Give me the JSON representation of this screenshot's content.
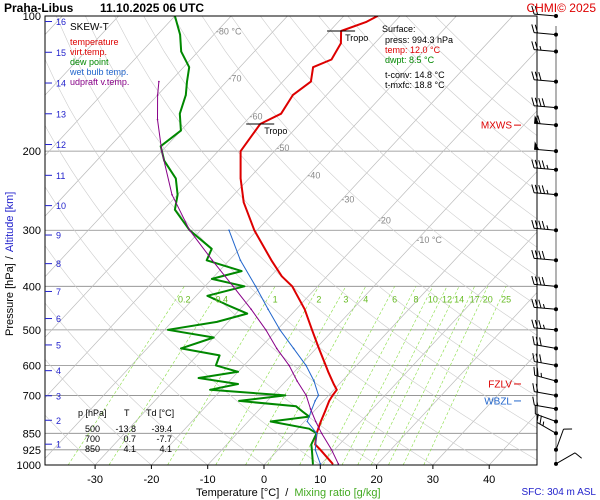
{
  "header": {
    "station": "Praha-Libus",
    "datetime": "11.10.2025 06 UTC",
    "copyright": "CHMI© 2025"
  },
  "legend": {
    "title": "SKEW-T",
    "items": [
      {
        "label": "temperature",
        "color": "#dd0000"
      },
      {
        "label": "virt.temp.",
        "color": "#dd0000"
      },
      {
        "label": "dew point",
        "color": "#008800"
      },
      {
        "label": "wet bulb temp.",
        "color": "#2266cc"
      },
      {
        "label": "udpraft v.temp.",
        "color": "#880088"
      }
    ]
  },
  "surface_box": {
    "title": "Surface:",
    "press": "press: 994.3 hPa",
    "temp": "temp: 12.0 °C",
    "dwpt": "dwpt: 8.5 °C",
    "tconv": "t-conv: 14.8 °C",
    "tmxfc": "t-mxfc: 18.8 °C"
  },
  "level_table": {
    "headers": [
      "p [hPa]",
      "T",
      "Td [°C]"
    ],
    "rows": [
      [
        "500",
        "-13.8",
        "-39.4"
      ],
      [
        "700",
        "0.7",
        "-7.7"
      ],
      [
        "850",
        "4.1",
        "4.1"
      ]
    ]
  },
  "axes": {
    "ylabel_pressure": "Pressure [hPa]",
    "ylabel_sep": "/",
    "ylabel_altitude": "Altitude [km]",
    "xlabel_temp": "Temperature [°C]",
    "xlabel_sep": "/",
    "xlabel_mix": "Mixing ratio [g/kg]",
    "sfc_label": "SFC: 304 m ASL"
  },
  "colors": {
    "temperature": "#dd0000",
    "dewpoint": "#008800",
    "wetbulb": "#2266cc",
    "parcel": "#880088",
    "altitude_axis": "#2222cc",
    "mixing": "#88dd44",
    "grid": "#999999",
    "marker": "#dd0000"
  },
  "chart_data": {
    "type": "line",
    "subtype": "skew-T log-p diagram",
    "x_axis": {
      "label": "Temperature [°C]",
      "ticks": [
        -30,
        -20,
        -10,
        0,
        10,
        20,
        30,
        40
      ],
      "range": [
        -35,
        45
      ]
    },
    "y_axis": {
      "label": "Pressure [hPa]",
      "scale": "log",
      "range": [
        1000,
        100
      ],
      "ticks": [
        100,
        200,
        300,
        400,
        500,
        600,
        700,
        850,
        925,
        1000
      ]
    },
    "altitude_ticks": [
      1,
      2,
      3,
      4,
      5,
      6,
      7,
      8,
      9,
      10,
      11,
      12,
      13,
      14,
      15,
      16
    ],
    "isotherm_labels": [
      -80,
      -70,
      -60,
      -50,
      -40,
      -30,
      -20,
      -10
    ],
    "isotherm_label_text": [
      "-80 °C",
      "-70",
      "-60",
      "-50",
      "-40",
      "-30",
      "-20",
      "-10 °C"
    ],
    "mixing_ratio_labels": [
      "0.2",
      "0.4",
      "1",
      "2",
      "3",
      "4",
      "6",
      "8",
      "10",
      "12",
      "14",
      "17",
      "20",
      "25"
    ],
    "mixing_ratio_values": [
      0.2,
      0.4,
      1,
      2,
      3,
      4,
      6,
      8,
      10,
      12,
      14,
      17,
      20,
      25
    ],
    "markers": [
      {
        "label": "MXWS",
        "pressure": 175
      },
      {
        "label": "FZLV",
        "pressure": 660
      },
      {
        "label": "WBZL",
        "pressure": 720
      }
    ],
    "tropopause_labels": [
      {
        "label": "Tropo",
        "pressure": 108,
        "temperature": -58
      },
      {
        "label": "Tropo",
        "pressure": 174,
        "temperature": -57
      }
    ],
    "series": [
      {
        "name": "temperature",
        "points": [
          [
            994,
            12.0
          ],
          [
            925,
            7.5
          ],
          [
            900,
            5.7
          ],
          [
            850,
            4.1
          ],
          [
            800,
            2.9
          ],
          [
            760,
            2.0
          ],
          [
            720,
            1.0
          ],
          [
            700,
            0.7
          ],
          [
            680,
            0.5
          ],
          [
            660,
            -1.0
          ],
          [
            620,
            -4.0
          ],
          [
            600,
            -5.5
          ],
          [
            550,
            -9.5
          ],
          [
            500,
            -13.8
          ],
          [
            450,
            -18.5
          ],
          [
            400,
            -24.5
          ],
          [
            380,
            -28.0
          ],
          [
            350,
            -32.5
          ],
          [
            300,
            -40.5
          ],
          [
            260,
            -47.0
          ],
          [
            230,
            -51.5
          ],
          [
            200,
            -56.0
          ],
          [
            174,
            -57.0
          ],
          [
            165,
            -55.0
          ],
          [
            150,
            -56.0
          ],
          [
            140,
            -55.0
          ],
          [
            130,
            -57.0
          ],
          [
            125,
            -55.0
          ],
          [
            115,
            -56.0
          ],
          [
            108,
            -58.0
          ],
          [
            103,
            -55.0
          ],
          [
            100,
            -54.0
          ]
        ]
      },
      {
        "name": "dew point",
        "points": [
          [
            994,
            8.5
          ],
          [
            925,
            6.0
          ],
          [
            900,
            5.0
          ],
          [
            850,
            4.1
          ],
          [
            830,
            2.0
          ],
          [
            800,
            -6.0
          ],
          [
            780,
            0.0
          ],
          [
            760,
            -2.0
          ],
          [
            740,
            -4.0
          ],
          [
            720,
            -15.0
          ],
          [
            700,
            -7.7
          ],
          [
            680,
            -22.0
          ],
          [
            660,
            -18.0
          ],
          [
            640,
            -26.0
          ],
          [
            620,
            -20.0
          ],
          [
            600,
            -25.0
          ],
          [
            570,
            -26.0
          ],
          [
            550,
            -34.0
          ],
          [
            520,
            -30.0
          ],
          [
            500,
            -39.4
          ],
          [
            480,
            -32.0
          ],
          [
            460,
            -28.0
          ],
          [
            440,
            -33.0
          ],
          [
            420,
            -38.0
          ],
          [
            400,
            -33.0
          ],
          [
            385,
            -40.0
          ],
          [
            370,
            -36.0
          ],
          [
            350,
            -44.0
          ],
          [
            330,
            -45.0
          ],
          [
            300,
            -52.0
          ],
          [
            270,
            -58.0
          ],
          [
            250,
            -60.0
          ],
          [
            230,
            -63.0
          ],
          [
            210,
            -68.0
          ],
          [
            195,
            -71.0
          ],
          [
            180,
            -70.0
          ],
          [
            165,
            -73.0
          ],
          [
            150,
            -75.0
          ],
          [
            140,
            -77.0
          ],
          [
            130,
            -79.0
          ],
          [
            120,
            -83.0
          ],
          [
            110,
            -86.0
          ],
          [
            100,
            -90.0
          ]
        ]
      },
      {
        "name": "wet bulb temp.",
        "points": [
          [
            994,
            9.8
          ],
          [
            925,
            6.6
          ],
          [
            850,
            4.1
          ],
          [
            800,
            0.5
          ],
          [
            760,
            -0.5
          ],
          [
            720,
            -1.5
          ],
          [
            700,
            -1.8
          ],
          [
            650,
            -5.0
          ],
          [
            600,
            -9.0
          ],
          [
            550,
            -14.0
          ],
          [
            500,
            -19.5
          ],
          [
            450,
            -25.0
          ],
          [
            400,
            -31.0
          ],
          [
            350,
            -38.0
          ],
          [
            300,
            -45.0
          ]
        ]
      },
      {
        "name": "udpraft v.temp.",
        "points": [
          [
            994,
            13.0
          ],
          [
            925,
            9.5
          ],
          [
            850,
            5.0
          ],
          [
            800,
            2.0
          ],
          [
            750,
            -1.0
          ],
          [
            700,
            -4.0
          ],
          [
            650,
            -8.0
          ],
          [
            600,
            -12.0
          ],
          [
            550,
            -17.0
          ],
          [
            500,
            -22.0
          ],
          [
            450,
            -28.0
          ],
          [
            400,
            -35.0
          ],
          [
            350,
            -43.0
          ],
          [
            300,
            -52.0
          ],
          [
            250,
            -61.0
          ],
          [
            200,
            -70.0
          ],
          [
            170,
            -76.0
          ],
          [
            150,
            -80.0
          ],
          [
            140,
            -82.0
          ]
        ]
      }
    ],
    "wind_barbs": [
      {
        "pressure": 994,
        "dir_deg": 60,
        "speed_kt": 10
      },
      {
        "pressure": 925,
        "dir_deg": 20,
        "speed_kt": 10
      },
      {
        "pressure": 850,
        "dir_deg": 300,
        "speed_kt": 25
      },
      {
        "pressure": 800,
        "dir_deg": 290,
        "speed_kt": 10
      },
      {
        "pressure": 750,
        "dir_deg": 280,
        "speed_kt": 15
      },
      {
        "pressure": 700,
        "dir_deg": 280,
        "speed_kt": 20
      },
      {
        "pressure": 650,
        "dir_deg": 285,
        "speed_kt": 25
      },
      {
        "pressure": 600,
        "dir_deg": 280,
        "speed_kt": 30
      },
      {
        "pressure": 550,
        "dir_deg": 280,
        "speed_kt": 30
      },
      {
        "pressure": 500,
        "dir_deg": 275,
        "speed_kt": 35
      },
      {
        "pressure": 450,
        "dir_deg": 275,
        "speed_kt": 35
      },
      {
        "pressure": 400,
        "dir_deg": 275,
        "speed_kt": 40
      },
      {
        "pressure": 350,
        "dir_deg": 275,
        "speed_kt": 40
      },
      {
        "pressure": 300,
        "dir_deg": 275,
        "speed_kt": 45
      },
      {
        "pressure": 250,
        "dir_deg": 275,
        "speed_kt": 45
      },
      {
        "pressure": 220,
        "dir_deg": 275,
        "speed_kt": 45
      },
      {
        "pressure": 200,
        "dir_deg": 275,
        "speed_kt": 50
      },
      {
        "pressure": 175,
        "dir_deg": 275,
        "speed_kt": 60
      },
      {
        "pressure": 160,
        "dir_deg": 275,
        "speed_kt": 40
      },
      {
        "pressure": 140,
        "dir_deg": 275,
        "speed_kt": 30
      },
      {
        "pressure": 120,
        "dir_deg": 275,
        "speed_kt": 25
      },
      {
        "pressure": 110,
        "dir_deg": 275,
        "speed_kt": 20
      },
      {
        "pressure": 100,
        "dir_deg": 275,
        "speed_kt": 20
      }
    ]
  }
}
